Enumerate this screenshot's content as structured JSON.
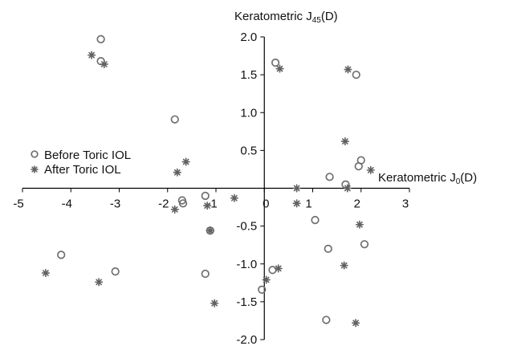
{
  "chart_data": {
    "type": "scatter",
    "xlabel_main": "Keratometric J",
    "xlabel_sub": "0",
    "xlabel_unit": "(D)",
    "ylabel_main": "Keratometric J",
    "ylabel_sub": "45",
    "ylabel_unit": "(D)",
    "xlim": [
      -5,
      3
    ],
    "ylim": [
      -2.0,
      2.0
    ],
    "x_ticks": [
      -5,
      -4,
      -3,
      -2,
      -1,
      0,
      1,
      2,
      3
    ],
    "x_tick_labels": [
      "-5",
      "-4",
      "-3",
      "-2",
      "-1",
      "0",
      "1",
      "2",
      "3"
    ],
    "y_ticks": [
      2.0,
      1.5,
      1.0,
      0.5,
      -0.5,
      -1.0,
      -1.5,
      -2.0
    ],
    "y_tick_labels": [
      "2.0",
      "1.5",
      "1.0",
      "0.5",
      "-0.5",
      "-1.0",
      "-1.5",
      "-2.0"
    ],
    "grid": false,
    "legend_position": "left",
    "series": [
      {
        "name": "Before Toric IOL",
        "marker": "open-circle",
        "color": "#707070",
        "points": [
          [
            -3.38,
            1.97
          ],
          [
            -3.38,
            1.68
          ],
          [
            -1.85,
            0.91
          ],
          [
            -1.7,
            -0.16
          ],
          [
            -1.68,
            -0.2
          ],
          [
            -1.22,
            -0.1
          ],
          [
            -1.12,
            -0.56
          ],
          [
            -1.22,
            -1.13
          ],
          [
            -4.2,
            -0.88
          ],
          [
            -3.08,
            -1.1
          ],
          [
            0.23,
            1.66
          ],
          [
            1.9,
            1.5
          ],
          [
            1.35,
            0.15
          ],
          [
            1.68,
            0.05
          ],
          [
            1.95,
            0.29
          ],
          [
            2.0,
            0.37
          ],
          [
            1.05,
            -0.42
          ],
          [
            1.32,
            -0.8
          ],
          [
            2.07,
            -0.74
          ],
          [
            0.17,
            -1.08
          ],
          [
            -0.05,
            -1.34
          ],
          [
            1.28,
            -1.74
          ]
        ]
      },
      {
        "name": "After Toric IOL",
        "marker": "star",
        "color": "#606060",
        "points": [
          [
            -3.57,
            1.76
          ],
          [
            -3.31,
            1.64
          ],
          [
            -1.62,
            0.35
          ],
          [
            -1.8,
            0.21
          ],
          [
            -1.85,
            -0.28
          ],
          [
            -1.12,
            -0.56
          ],
          [
            -1.18,
            -0.23
          ],
          [
            -0.62,
            -0.13
          ],
          [
            -4.52,
            -1.12
          ],
          [
            -3.42,
            -1.24
          ],
          [
            -1.03,
            -1.52
          ],
          [
            0.04,
            -1.21
          ],
          [
            0.32,
            1.58
          ],
          [
            1.73,
            1.57
          ],
          [
            1.67,
            0.62
          ],
          [
            2.2,
            0.24
          ],
          [
            1.72,
            0.0
          ],
          [
            0.67,
            0.0
          ],
          [
            0.67,
            -0.2
          ],
          [
            1.97,
            -0.48
          ],
          [
            1.65,
            -1.02
          ],
          [
            0.29,
            -1.06
          ],
          [
            1.89,
            -1.78
          ]
        ]
      }
    ]
  }
}
